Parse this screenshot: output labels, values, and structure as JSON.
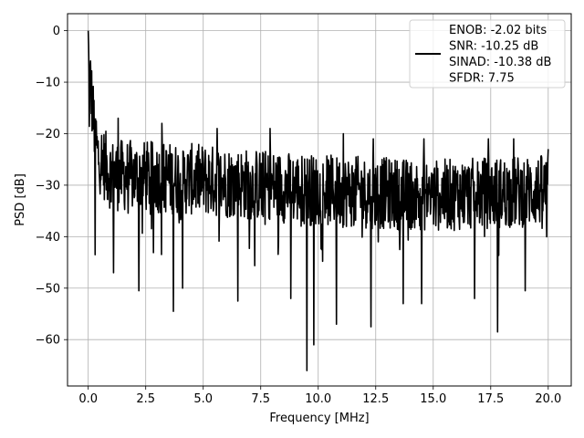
{
  "chart_data": {
    "type": "line",
    "xlabel": "Frequency [MHz]",
    "ylabel": "PSD [dB]",
    "xlim": [
      -0.9,
      21.0
    ],
    "ylim": [
      -69.0,
      3.3
    ],
    "xticks": [
      0.0,
      2.5,
      5.0,
      7.5,
      10.0,
      12.5,
      15.0,
      17.5,
      20.0
    ],
    "xtick_labels": [
      "0.0",
      "2.5",
      "5.0",
      "7.5",
      "10.0",
      "12.5",
      "15.0",
      "17.5",
      "20.0"
    ],
    "yticks": [
      0,
      -10,
      -20,
      -30,
      -40,
      -50,
      -60
    ],
    "ytick_labels": [
      "0",
      "−10",
      "−20",
      "−30",
      "−40",
      "−50",
      "−60"
    ],
    "grid": true,
    "legend_position": "top-right",
    "series": [
      {
        "name": "ENOB: -2.02 bits\nSNR: -10.25 dB\nSINAD: -10.38 dB\nSFDR: 7.75",
        "color": "#000000",
        "trend": [
          [
            0.0,
            0
          ],
          [
            0.05,
            -14
          ],
          [
            0.1,
            -10
          ],
          [
            0.2,
            -16
          ],
          [
            0.4,
            -24
          ],
          [
            1.0,
            -28
          ],
          [
            5.0,
            -29
          ],
          [
            10.0,
            -31
          ],
          [
            15.0,
            -32
          ],
          [
            20.0,
            -31
          ]
        ],
        "spread": 7,
        "peaks": [
          [
            0.0,
            0.0
          ],
          [
            0.03,
            -8
          ],
          [
            0.07,
            -9
          ],
          [
            0.3,
            -16
          ],
          [
            1.3,
            -17
          ],
          [
            3.2,
            -18
          ],
          [
            3.7,
            -18
          ],
          [
            5.6,
            -19
          ],
          [
            7.9,
            -19
          ],
          [
            11.1,
            -20
          ],
          [
            12.4,
            -21
          ],
          [
            14.6,
            -21
          ],
          [
            17.4,
            -21
          ],
          [
            18.5,
            -21
          ],
          [
            20.0,
            -23
          ]
        ],
        "dips": [
          [
            0.3,
            -43.5
          ],
          [
            1.1,
            -47
          ],
          [
            2.2,
            -50.5
          ],
          [
            3.7,
            -54.5
          ],
          [
            4.1,
            -50
          ],
          [
            6.5,
            -52.5
          ],
          [
            8.8,
            -52
          ],
          [
            9.5,
            -66
          ],
          [
            9.8,
            -61
          ],
          [
            10.8,
            -57
          ],
          [
            12.3,
            -57.5
          ],
          [
            13.7,
            -53
          ],
          [
            14.5,
            -53
          ],
          [
            16.8,
            -52
          ],
          [
            17.8,
            -58.5
          ],
          [
            19.0,
            -50.5
          ]
        ],
        "points": 1200,
        "x_range": [
          0.0,
          20.0
        ]
      }
    ]
  }
}
